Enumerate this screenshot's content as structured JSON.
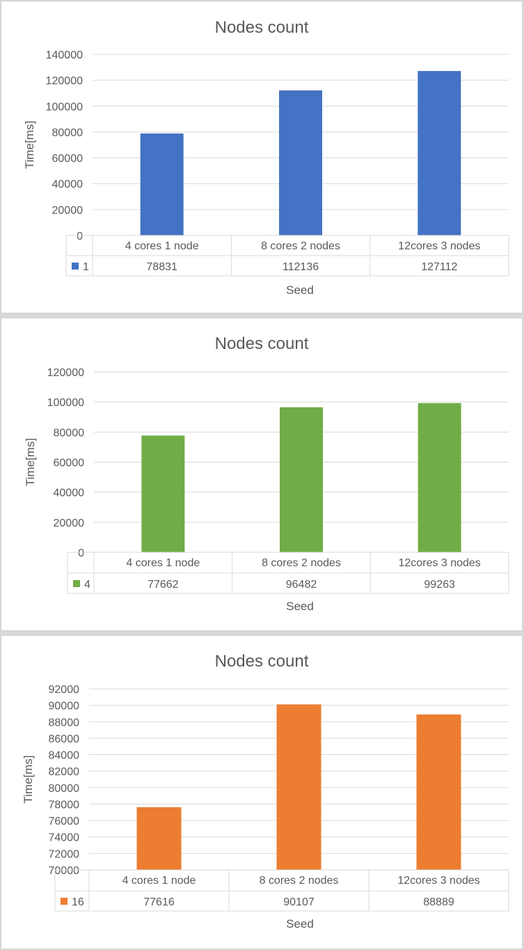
{
  "chart_data": [
    {
      "type": "bar",
      "title": "Nodes count",
      "xlabel": "Seed",
      "ylabel": "Time[ms]",
      "categories": [
        "4 cores 1 node",
        "8 cores 2 nodes",
        "12cores 3 nodes"
      ],
      "series": [
        {
          "name": "1",
          "values": [
            78831,
            112136,
            127112
          ],
          "color": "#4472c4"
        }
      ],
      "table_values": [
        "78831",
        "112136",
        "127112"
      ],
      "ylim": [
        0,
        140000
      ],
      "yticks": [
        0,
        20000,
        40000,
        60000,
        80000,
        100000,
        120000,
        140000
      ],
      "ytick_labels": [
        "0",
        "20000",
        "40000",
        "60000",
        "80000",
        "100000",
        "120000",
        "140000"
      ],
      "grid": true,
      "legend": "data-table"
    },
    {
      "type": "bar",
      "title": "Nodes count",
      "xlabel": "Seed",
      "ylabel": "Time[ms]",
      "categories": [
        "4 cores 1 node",
        "8 cores 2 nodes",
        "12cores 3 nodes"
      ],
      "series": [
        {
          "name": "4",
          "values": [
            77662,
            96482,
            99263
          ],
          "color": "#70ad47"
        }
      ],
      "table_values": [
        "77662",
        "96482",
        "99263"
      ],
      "ylim": [
        0,
        120000
      ],
      "yticks": [
        0,
        20000,
        40000,
        60000,
        80000,
        100000,
        120000
      ],
      "ytick_labels": [
        "0",
        "20000",
        "40000",
        "60000",
        "80000",
        "100000",
        "120000"
      ],
      "grid": true,
      "legend": "data-table"
    },
    {
      "type": "bar",
      "title": "Nodes count",
      "xlabel": "Seed",
      "ylabel": "Time[ms]",
      "categories": [
        "4 cores 1 node",
        "8 cores 2 nodes",
        "12cores 3 nodes"
      ],
      "series": [
        {
          "name": "16",
          "values": [
            77616,
            90107,
            88889
          ],
          "color": "#ed7d31"
        }
      ],
      "table_values": [
        "77616",
        "90107",
        "88889"
      ],
      "ylim": [
        70000,
        92000
      ],
      "yticks": [
        70000,
        72000,
        74000,
        76000,
        78000,
        80000,
        82000,
        84000,
        86000,
        88000,
        90000,
        92000
      ],
      "ytick_labels": [
        "70000",
        "72000",
        "74000",
        "76000",
        "78000",
        "80000",
        "82000",
        "84000",
        "86000",
        "88000",
        "90000",
        "92000"
      ],
      "grid": true,
      "legend": "data-table"
    }
  ]
}
